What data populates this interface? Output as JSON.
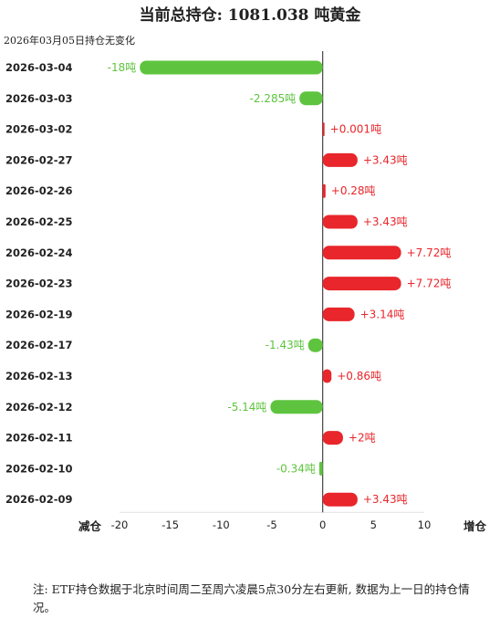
{
  "header": {
    "title": "当前总持仓:  1081.038 吨黄金",
    "subtitle": "2026年03月05日持仓无变化"
  },
  "note": "注: ETF持仓数据于北京时间周二至周六凌晨5点30分左右更新, 数据为上一日的持仓情况。",
  "colors": {
    "positive": "#e8262b",
    "negative": "#5ec43f",
    "axis": "#444444"
  },
  "chart_data": {
    "type": "bar",
    "orientation": "horizontal",
    "categories": [
      "2026-03-04",
      "2026-03-03",
      "2026-03-02",
      "2026-02-27",
      "2026-02-26",
      "2026-02-25",
      "2026-02-24",
      "2026-02-23",
      "2026-02-19",
      "2026-02-17",
      "2026-02-13",
      "2026-02-12",
      "2026-02-11",
      "2026-02-10",
      "2026-02-09"
    ],
    "values": [
      -18,
      -2.285,
      0.001,
      3.43,
      0.28,
      3.43,
      7.72,
      7.72,
      3.14,
      -1.43,
      0.86,
      -5.14,
      2,
      -0.34,
      3.43
    ],
    "labels": [
      "-18吨",
      "-2.285吨",
      "+0.001吨",
      "+3.43吨",
      "+0.28吨",
      "+3.43吨",
      "+7.72吨",
      "+7.72吨",
      "+3.14吨",
      "-1.43吨",
      "+0.86吨",
      "-5.14吨",
      "+2吨",
      "-0.34吨",
      "+3.43吨"
    ],
    "xlim": [
      -20,
      10
    ],
    "xticks": [
      -20,
      -15,
      -10,
      -5,
      0,
      5,
      10
    ],
    "xlabel_left": "减仓",
    "xlabel_right": "增仓",
    "grid": false
  }
}
